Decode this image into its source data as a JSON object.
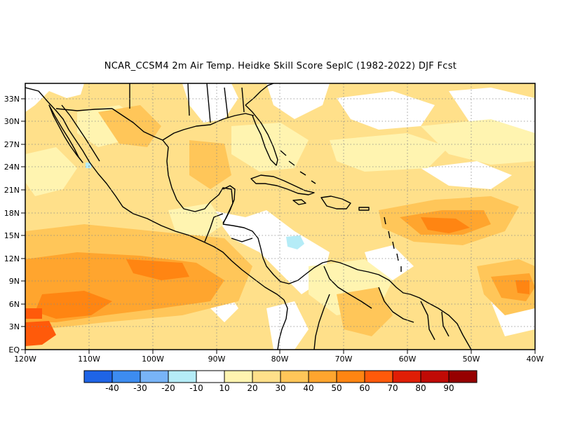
{
  "title": "NCAR_CCSM4  2m Air Temp. Heidke Skill Score SeplC (1982-2022) DJF Fcst",
  "map": {
    "lat_ticks": [
      "EQ",
      "3N",
      "6N",
      "9N",
      "12N",
      "15N",
      "18N",
      "21N",
      "24N",
      "27N",
      "30N",
      "33N"
    ],
    "lon_ticks": [
      "120W",
      "110W",
      "100W",
      "90W",
      "80W",
      "70W",
      "60W",
      "50W",
      "40W"
    ],
    "lat_range": [
      0,
      35
    ],
    "lon_range": [
      -120,
      -40
    ],
    "grid": "dotted",
    "colors": {
      "land_outline": "#000000",
      "s10": "#ffffff",
      "s20": "#fff4b0",
      "s30": "#ffe08a",
      "s40": "#ffc659",
      "s50": "#ffa52e",
      "s60": "#ff8512",
      "s70": "#ff5a0a",
      "neg10": "#b5ecf7"
    }
  },
  "colorbar": {
    "colors": [
      "#1e64e6",
      "#3d8cf0",
      "#78b4f7",
      "#b5ecf7",
      "#ffffff",
      "#fff4b0",
      "#ffe08a",
      "#ffc659",
      "#ffa52e",
      "#ff8512",
      "#ff5a0a",
      "#e01e05",
      "#c00a05",
      "#960000"
    ],
    "labels": [
      "-40",
      "-30",
      "-20",
      "-10",
      "10",
      "20",
      "30",
      "40",
      "50",
      "60",
      "70",
      "80",
      "90"
    ]
  }
}
